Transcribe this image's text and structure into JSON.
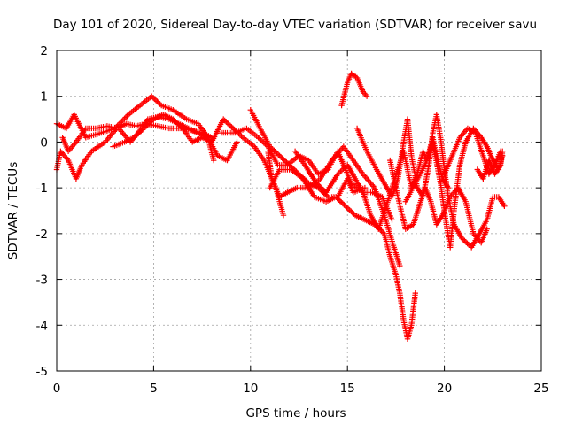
{
  "chart_data": {
    "type": "scatter",
    "title": "Day 101 of 2020, Sidereal Day-to-day VTEC variation (SDTVAR) for receiver savu",
    "xlabel": "GPS time / hours",
    "ylabel": "SDTVAR / TECUs",
    "xlim": [
      0,
      25
    ],
    "ylim": [
      -5,
      2
    ],
    "xticks": [
      0,
      5,
      10,
      15,
      20,
      25
    ],
    "yticks": [
      -5,
      -4,
      -3,
      -2,
      -1,
      0,
      1,
      2
    ],
    "grid": true,
    "marker": "+",
    "color": "#ff0000",
    "series": [
      {
        "name": "t1",
        "points": [
          [
            0.0,
            0.4
          ],
          [
            0.5,
            0.3
          ],
          [
            0.9,
            0.6
          ],
          [
            1.5,
            0.1
          ],
          [
            2.3,
            0.2
          ],
          [
            3.0,
            0.3
          ],
          [
            3.7,
            0.6
          ],
          [
            4.3,
            0.8
          ],
          [
            4.9,
            1.0
          ],
          [
            5.4,
            0.8
          ],
          [
            6.0,
            0.7
          ],
          [
            6.7,
            0.5
          ],
          [
            7.3,
            0.4
          ],
          [
            7.8,
            0.1
          ],
          [
            8.1,
            -0.4
          ]
        ]
      },
      {
        "name": "t2",
        "points": [
          [
            0.0,
            -0.6
          ],
          [
            0.2,
            -0.2
          ],
          [
            0.6,
            -0.4
          ],
          [
            1.0,
            -0.8
          ],
          [
            1.3,
            -0.5
          ],
          [
            1.8,
            -0.2
          ],
          [
            2.5,
            0.0
          ],
          [
            3.1,
            0.3
          ],
          [
            3.6,
            0.4
          ],
          [
            4.1,
            0.35
          ],
          [
            4.6,
            0.4
          ],
          [
            5.2,
            0.35
          ],
          [
            5.8,
            0.3
          ],
          [
            6.4,
            0.3
          ],
          [
            7.0,
            0.25
          ],
          [
            7.5,
            0.2
          ],
          [
            8.0,
            0.1
          ]
        ]
      },
      {
        "name": "t3",
        "points": [
          [
            0.3,
            0.1
          ],
          [
            0.6,
            -0.2
          ],
          [
            1.0,
            0.0
          ],
          [
            1.5,
            0.3
          ],
          [
            2.0,
            0.3
          ],
          [
            2.6,
            0.35
          ],
          [
            3.2,
            0.3
          ],
          [
            3.8,
            0.0
          ],
          [
            4.2,
            0.2
          ],
          [
            4.7,
            0.5
          ],
          [
            5.2,
            0.55
          ],
          [
            5.8,
            0.5
          ],
          [
            6.3,
            0.4
          ],
          [
            6.8,
            0.3
          ],
          [
            7.3,
            0.2
          ],
          [
            7.8,
            0.1
          ],
          [
            8.3,
            -0.3
          ],
          [
            8.8,
            -0.4
          ],
          [
            9.3,
            0.0
          ]
        ]
      },
      {
        "name": "t4",
        "points": [
          [
            2.9,
            -0.1
          ],
          [
            3.5,
            0.0
          ],
          [
            4.0,
            0.1
          ],
          [
            4.5,
            0.3
          ],
          [
            5.0,
            0.5
          ],
          [
            5.5,
            0.6
          ],
          [
            6.0,
            0.5
          ],
          [
            6.5,
            0.3
          ],
          [
            7.0,
            0.0
          ],
          [
            7.5,
            0.1
          ],
          [
            8.0,
            0.0
          ],
          [
            8.6,
            0.5
          ],
          [
            9.1,
            0.3
          ],
          [
            9.6,
            0.1
          ],
          [
            10.2,
            -0.1
          ],
          [
            10.7,
            -0.4
          ],
          [
            11.3,
            -1.0
          ],
          [
            11.7,
            -1.6
          ]
        ]
      },
      {
        "name": "t5",
        "points": [
          [
            8.5,
            0.2
          ],
          [
            9.2,
            0.2
          ],
          [
            9.8,
            0.3
          ],
          [
            10.4,
            0.1
          ],
          [
            10.9,
            -0.1
          ],
          [
            11.4,
            -0.5
          ],
          [
            11.9,
            -0.5
          ],
          [
            12.5,
            -0.3
          ],
          [
            13.0,
            -0.4
          ],
          [
            13.5,
            -0.7
          ],
          [
            14.0,
            -0.6
          ],
          [
            14.5,
            -0.2
          ],
          [
            14.8,
            -0.5
          ],
          [
            15.2,
            -0.9
          ],
          [
            15.8,
            -1.1
          ],
          [
            16.3,
            -1.1
          ],
          [
            16.8,
            -1.2
          ],
          [
            17.3,
            -1.7
          ]
        ]
      },
      {
        "name": "t6",
        "points": [
          [
            10.0,
            0.7
          ],
          [
            10.5,
            0.3
          ],
          [
            11.0,
            -0.1
          ],
          [
            11.5,
            -0.3
          ],
          [
            12.0,
            -0.5
          ],
          [
            12.5,
            -0.7
          ],
          [
            13.0,
            -0.9
          ],
          [
            13.5,
            -1.0
          ],
          [
            14.0,
            -1.2
          ],
          [
            14.5,
            -1.2
          ],
          [
            15.0,
            -0.8
          ],
          [
            15.3,
            -1.1
          ],
          [
            15.9,
            -1.0
          ]
        ]
      },
      {
        "name": "t7",
        "points": [
          [
            10.9,
            -0.2
          ],
          [
            11.1,
            -0.8
          ],
          [
            11.5,
            -1.2
          ],
          [
            11.9,
            -1.1
          ],
          [
            12.4,
            -1.0
          ],
          [
            13.0,
            -1.0
          ],
          [
            13.6,
            -0.8
          ],
          [
            14.2,
            -0.4
          ],
          [
            14.8,
            -0.1
          ],
          [
            15.3,
            -0.4
          ],
          [
            15.8,
            -0.7
          ],
          [
            16.4,
            -1.0
          ],
          [
            16.9,
            -1.6
          ],
          [
            17.4,
            -2.3
          ],
          [
            17.7,
            -2.7
          ]
        ]
      },
      {
        "name": "t8",
        "points": [
          [
            11.0,
            -1.0
          ],
          [
            11.5,
            -0.6
          ],
          [
            12.1,
            -0.6
          ],
          [
            12.7,
            -0.8
          ],
          [
            13.3,
            -1.2
          ],
          [
            13.9,
            -1.3
          ],
          [
            14.4,
            -1.2
          ],
          [
            14.9,
            -1.4
          ],
          [
            15.4,
            -1.6
          ],
          [
            15.9,
            -1.7
          ],
          [
            16.4,
            -1.8
          ],
          [
            16.9,
            -2.0
          ],
          [
            17.2,
            -2.5
          ],
          [
            17.5,
            -2.9
          ],
          [
            17.7,
            -3.3
          ],
          [
            17.9,
            -3.9
          ],
          [
            18.1,
            -4.3
          ],
          [
            18.3,
            -4.0
          ],
          [
            18.5,
            -3.3
          ]
        ]
      },
      {
        "name": "t9",
        "points": [
          [
            12.3,
            -0.2
          ],
          [
            12.8,
            -0.5
          ],
          [
            13.4,
            -0.9
          ],
          [
            13.9,
            -1.1
          ],
          [
            14.5,
            -0.7
          ],
          [
            15.0,
            -0.5
          ],
          [
            15.4,
            -0.8
          ],
          [
            15.8,
            -1.1
          ],
          [
            16.2,
            -1.6
          ],
          [
            16.6,
            -1.9
          ],
          [
            17.0,
            -1.4
          ],
          [
            17.3,
            -1.0
          ],
          [
            17.6,
            -0.6
          ],
          [
            17.9,
            -0.2
          ],
          [
            18.1,
            -0.6
          ],
          [
            18.3,
            -1.0
          ],
          [
            18.6,
            -0.7
          ],
          [
            18.9,
            -0.2
          ],
          [
            19.1,
            -0.4
          ],
          [
            19.4,
            0.1
          ],
          [
            19.6,
            -0.3
          ],
          [
            19.9,
            -0.8
          ],
          [
            20.2,
            -1.0
          ]
        ]
      },
      {
        "name": "t10",
        "points": [
          [
            14.7,
            0.8
          ],
          [
            15.0,
            1.3
          ],
          [
            15.2,
            1.5
          ],
          [
            15.5,
            1.4
          ],
          [
            15.8,
            1.1
          ],
          [
            16.0,
            1.0
          ]
        ]
      },
      {
        "name": "t11",
        "points": [
          [
            15.5,
            0.3
          ],
          [
            16.0,
            -0.2
          ],
          [
            16.5,
            -0.6
          ],
          [
            16.9,
            -0.9
          ],
          [
            17.3,
            -1.2
          ],
          [
            17.6,
            -0.8
          ],
          [
            17.9,
            0.0
          ],
          [
            18.1,
            0.5
          ],
          [
            18.3,
            -0.3
          ],
          [
            18.6,
            -1.0
          ],
          [
            18.9,
            -1.2
          ],
          [
            19.2,
            -0.5
          ],
          [
            19.4,
            0.2
          ],
          [
            19.6,
            0.6
          ],
          [
            19.8,
            0.1
          ],
          [
            20.0,
            -0.6
          ],
          [
            20.2,
            -1.2
          ],
          [
            20.5,
            -1.8
          ],
          [
            20.9,
            -2.1
          ],
          [
            21.4,
            -2.3
          ],
          [
            21.8,
            -2.0
          ],
          [
            22.2,
            -1.7
          ],
          [
            22.5,
            -1.2
          ],
          [
            22.8,
            -1.2
          ],
          [
            23.1,
            -1.4
          ]
        ]
      },
      {
        "name": "t12",
        "points": [
          [
            17.2,
            -0.4
          ],
          [
            17.6,
            -1.2
          ],
          [
            18.0,
            -1.9
          ],
          [
            18.4,
            -1.8
          ],
          [
            18.7,
            -1.4
          ],
          [
            19.0,
            -1.0
          ],
          [
            19.3,
            -1.3
          ],
          [
            19.6,
            -1.8
          ],
          [
            19.9,
            -1.6
          ],
          [
            20.3,
            -1.2
          ],
          [
            20.7,
            -1.0
          ],
          [
            21.1,
            -1.3
          ],
          [
            21.5,
            -2.0
          ],
          [
            21.9,
            -2.2
          ],
          [
            22.2,
            -1.9
          ]
        ]
      },
      {
        "name": "t13",
        "points": [
          [
            18.0,
            -1.3
          ],
          [
            18.5,
            -0.9
          ],
          [
            19.0,
            -0.5
          ],
          [
            19.4,
            0.0
          ],
          [
            19.8,
            -0.9
          ],
          [
            20.1,
            -1.8
          ],
          [
            20.3,
            -2.3
          ],
          [
            20.5,
            -1.5
          ],
          [
            20.8,
            -0.5
          ],
          [
            21.1,
            0.0
          ],
          [
            21.5,
            0.3
          ],
          [
            21.9,
            0.1
          ],
          [
            22.2,
            -0.1
          ],
          [
            22.5,
            -0.4
          ],
          [
            22.8,
            -0.6
          ],
          [
            23.0,
            -0.3
          ]
        ]
      },
      {
        "name": "t14",
        "points": [
          [
            20.0,
            -0.7
          ],
          [
            20.4,
            -0.3
          ],
          [
            20.8,
            0.1
          ],
          [
            21.2,
            0.3
          ],
          [
            21.6,
            0.2
          ],
          [
            22.0,
            -0.3
          ],
          [
            22.3,
            -0.7
          ],
          [
            22.6,
            -0.5
          ],
          [
            22.9,
            -0.2
          ]
        ]
      },
      {
        "name": "t15",
        "points": [
          [
            21.7,
            -0.6
          ],
          [
            22.0,
            -0.8
          ],
          [
            22.3,
            -0.4
          ],
          [
            22.6,
            -0.7
          ],
          [
            22.9,
            -0.5
          ],
          [
            23.0,
            -0.2
          ]
        ]
      }
    ]
  }
}
